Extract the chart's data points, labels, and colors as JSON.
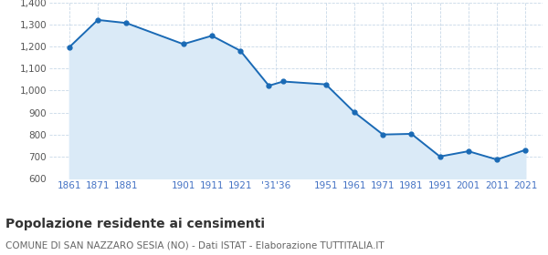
{
  "years": [
    1861,
    1871,
    1881,
    1901,
    1911,
    1921,
    1931,
    1936,
    1951,
    1961,
    1971,
    1981,
    1991,
    2001,
    2011,
    2021
  ],
  "population": [
    1197,
    1321,
    1307,
    1211,
    1249,
    1181,
    1022,
    1041,
    1028,
    901,
    800,
    803,
    700,
    724,
    686,
    730
  ],
  "ylim": [
    600,
    1400
  ],
  "yticks": [
    600,
    700,
    800,
    900,
    1000,
    1100,
    1200,
    1300,
    1400
  ],
  "tick_pos": [
    1861,
    1871,
    1881,
    1901,
    1911,
    1921,
    1933.5,
    1951,
    1961,
    1971,
    1981,
    1991,
    2001,
    2011,
    2021
  ],
  "tick_lab": [
    "1861",
    "1871",
    "1881",
    "1901",
    "1911",
    "1921",
    "'31'36",
    "1951",
    "1961",
    "1971",
    "1981",
    "1991",
    "2001",
    "2011",
    "2021"
  ],
  "line_color": "#1a6ab5",
  "fill_color": "#daeaf7",
  "marker_color": "#1a6ab5",
  "bg_color": "#ffffff",
  "grid_color": "#c8d8e8",
  "title": "Popolazione residente ai censimenti",
  "subtitle": "COMUNE DI SAN NAZZARO SESIA (NO) - Dati ISTAT - Elaborazione TUTTITALIA.IT",
  "title_fontsize": 10,
  "subtitle_fontsize": 7.5,
  "tick_color": "#4472c4",
  "ytick_color": "#555555",
  "xlim_left": 1854,
  "xlim_right": 2027
}
